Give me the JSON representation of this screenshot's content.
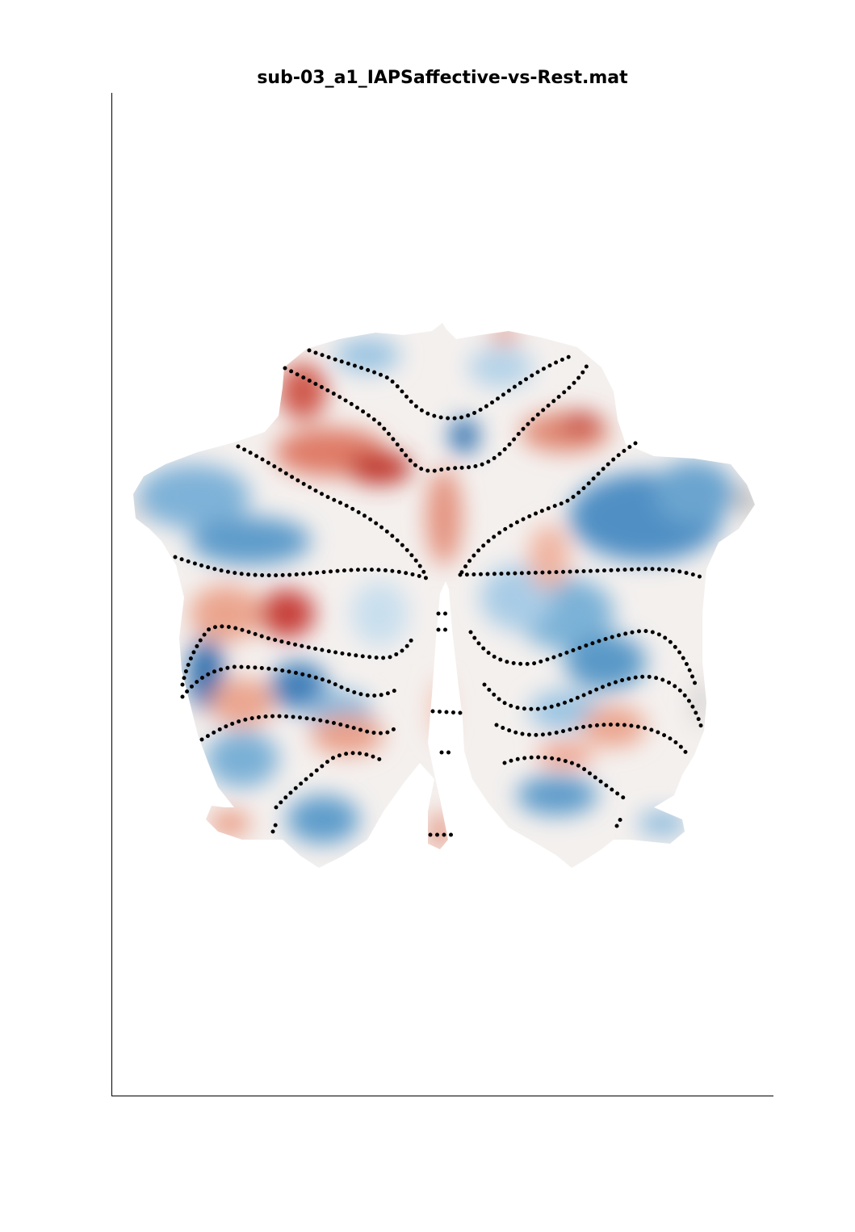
{
  "figure": {
    "title": "sub-03_a1_IAPSaffective-vs-Rest.mat"
  },
  "colors": {
    "positive": "#b2182b",
    "positive_light": "#ef8a62",
    "neutral": "#f7f7f7",
    "negative_light": "#67a9cf",
    "negative": "#2166ac",
    "no_data": "#bdbdbd",
    "boundary": "#000000"
  }
}
